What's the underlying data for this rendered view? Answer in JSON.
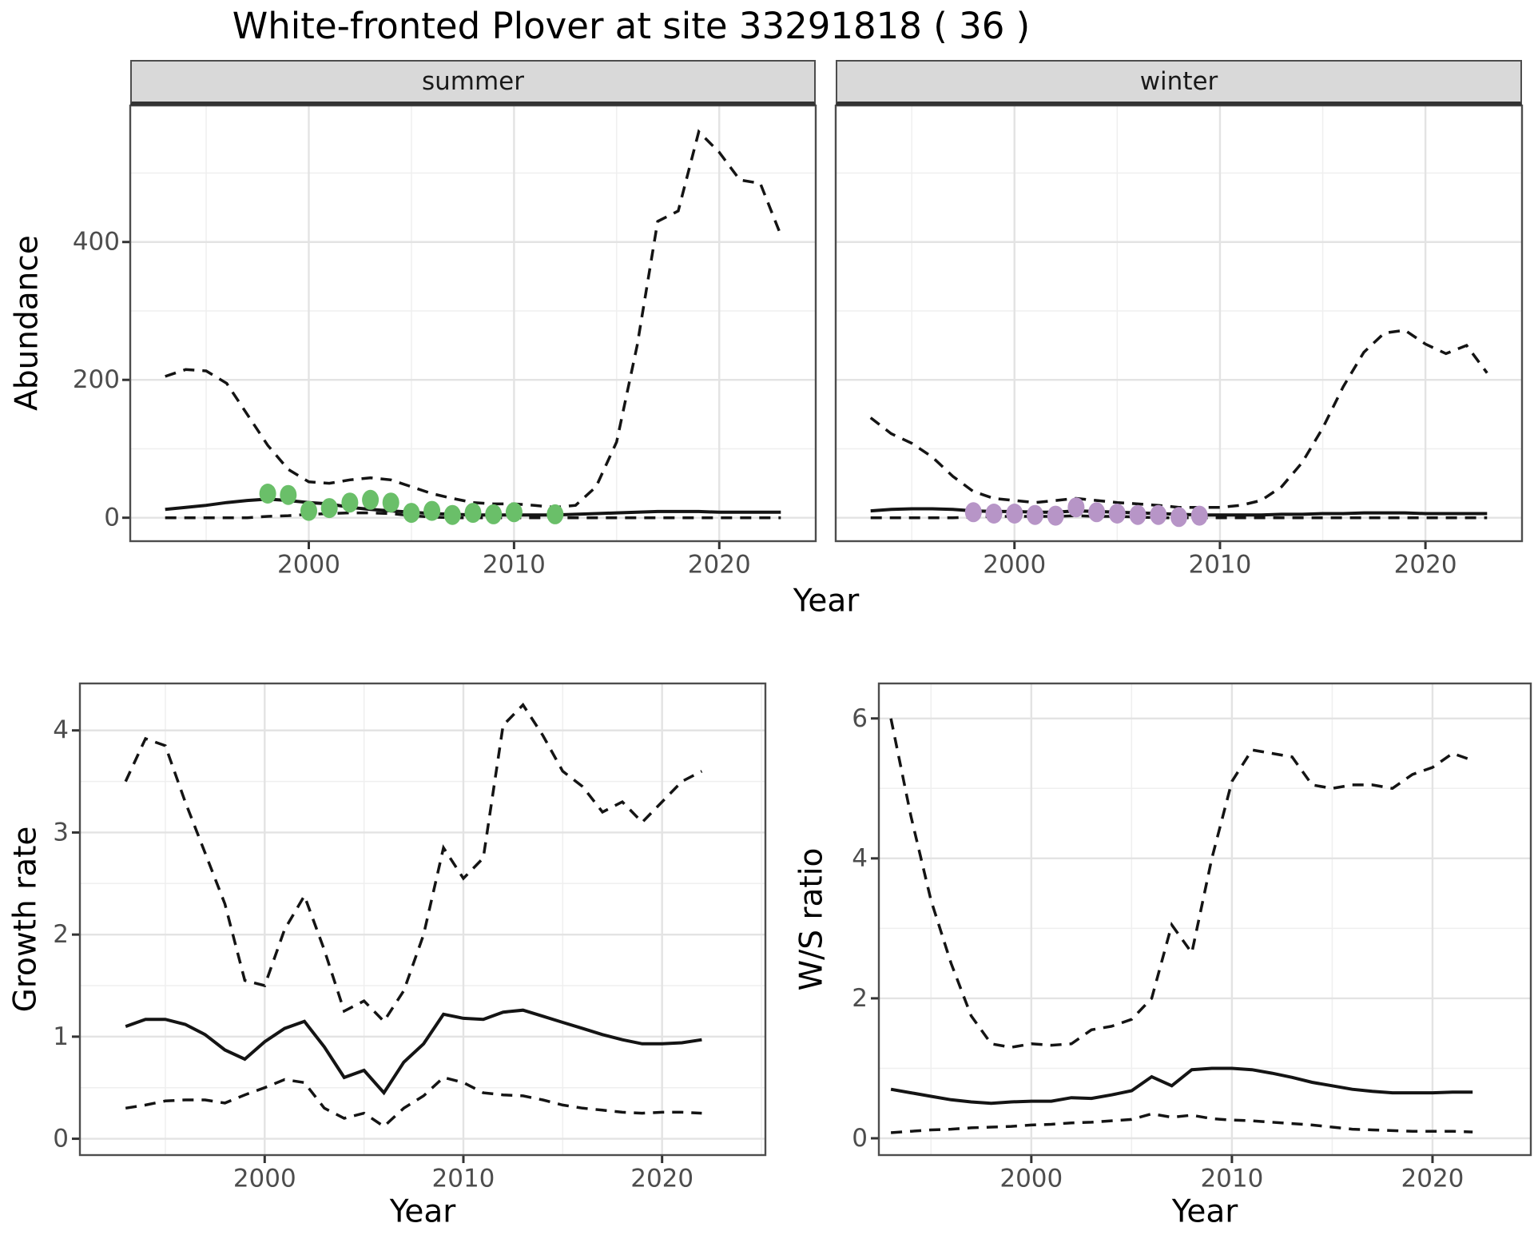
{
  "title": "White-fronted Plover at site 33291818 ( 36 )",
  "facets": {
    "summer": "summer",
    "winter": "winter"
  },
  "axis_titles": {
    "abundance": "Abundance",
    "year_top": "Year",
    "growth": "Growth rate",
    "ws": "W/S ratio",
    "year_growth": "Year",
    "year_ws": "Year"
  },
  "colors": {
    "line": "#141414",
    "grid_major": "#e3e3e3",
    "grid_minor": "#efefef",
    "strip_bg": "#d9d9d9",
    "panel_border": "#4d4d4d",
    "axis_text": "#4d4d4d",
    "tick": "#333333",
    "summer_obs": "#6abf69",
    "winter_obs": "#b795c7"
  },
  "chart_data": [
    {
      "id": "abundance-summer",
      "type": "line",
      "facet": "summer",
      "xlabel": "Year",
      "ylabel": "Abundance",
      "x": [
        1993,
        1994,
        1995,
        1996,
        1997,
        1998,
        1999,
        2000,
        2001,
        2002,
        2003,
        2004,
        2005,
        2006,
        2007,
        2008,
        2009,
        2010,
        2011,
        2012,
        2013,
        2014,
        2015,
        2016,
        2017,
        2018,
        2019,
        2020,
        2021,
        2022,
        2023
      ],
      "series": [
        {
          "name": "upper-ci",
          "style": "dashed",
          "values": [
            205,
            215,
            213,
            195,
            150,
            105,
            70,
            52,
            50,
            55,
            58,
            55,
            45,
            35,
            28,
            22,
            20,
            20,
            18,
            15,
            18,
            45,
            110,
            250,
            430,
            445,
            560,
            530,
            490,
            485,
            410
          ]
        },
        {
          "name": "median",
          "style": "solid",
          "values": [
            12,
            15,
            18,
            22,
            25,
            27,
            25,
            22,
            20,
            15,
            12,
            10,
            8,
            6,
            5,
            4,
            4,
            4,
            4,
            4,
            5,
            6,
            7,
            8,
            9,
            9,
            9,
            8,
            8,
            8,
            8
          ]
        },
        {
          "name": "lower-ci",
          "style": "dashed",
          "values": [
            0,
            0,
            0,
            0,
            0,
            2,
            3,
            5,
            6,
            7,
            7,
            6,
            3,
            1,
            0,
            0,
            0,
            0,
            0,
            0,
            0,
            0,
            0,
            0,
            0,
            0,
            0,
            0,
            0,
            0,
            0
          ]
        }
      ],
      "points": {
        "name": "observed-counts",
        "color_key": "summer_obs",
        "x": [
          1998,
          1999,
          2000,
          2001,
          2002,
          2003,
          2004,
          2005,
          2006,
          2007,
          2008,
          2009,
          2010,
          2012
        ],
        "values": [
          35,
          33,
          10,
          14,
          22,
          26,
          22,
          7,
          10,
          4,
          7,
          5,
          8,
          5
        ]
      },
      "xticks": [
        2000,
        2010,
        2020
      ],
      "yticks": [
        0,
        200,
        400
      ],
      "xlim": [
        1991.3,
        2024.7
      ],
      "ylim": [
        -34,
        598
      ]
    },
    {
      "id": "abundance-winter",
      "type": "line",
      "facet": "winter",
      "xlabel": "Year",
      "ylabel": "Abundance",
      "x": [
        1993,
        1994,
        1995,
        1996,
        1997,
        1998,
        1999,
        2000,
        2001,
        2002,
        2003,
        2004,
        2005,
        2006,
        2007,
        2008,
        2009,
        2010,
        2011,
        2012,
        2013,
        2014,
        2015,
        2016,
        2017,
        2018,
        2019,
        2020,
        2021,
        2022,
        2023
      ],
      "series": [
        {
          "name": "upper-ci",
          "style": "dashed",
          "values": [
            145,
            122,
            108,
            88,
            60,
            38,
            28,
            25,
            22,
            25,
            28,
            25,
            22,
            20,
            18,
            15,
            15,
            15,
            18,
            25,
            45,
            80,
            130,
            190,
            240,
            268,
            272,
            252,
            238,
            250,
            210
          ]
        },
        {
          "name": "median",
          "style": "solid",
          "values": [
            10,
            12,
            13,
            13,
            12,
            10,
            9,
            9,
            8,
            8,
            10,
            9,
            8,
            7,
            6,
            5,
            4,
            4,
            4,
            4,
            5,
            5,
            6,
            6,
            7,
            7,
            7,
            6,
            6,
            6,
            6
          ]
        },
        {
          "name": "lower-ci",
          "style": "dashed",
          "values": [
            0,
            0,
            0,
            0,
            0,
            1,
            2,
            2,
            2,
            2,
            3,
            2,
            2,
            1,
            0,
            0,
            0,
            0,
            0,
            0,
            0,
            0,
            0,
            0,
            0,
            0,
            0,
            0,
            0,
            0,
            0
          ]
        }
      ],
      "points": {
        "name": "observed-counts",
        "color_key": "winter_obs",
        "x": [
          1998,
          1999,
          2000,
          2001,
          2002,
          2003,
          2004,
          2005,
          2006,
          2007,
          2008,
          2009
        ],
        "values": [
          8,
          6,
          6,
          4,
          3,
          15,
          8,
          6,
          4,
          4,
          1,
          3
        ]
      },
      "xticks": [
        2000,
        2010,
        2020
      ],
      "yticks": [
        0,
        200,
        400
      ],
      "xlim": [
        1991.3,
        2024.7
      ],
      "ylim": [
        -34,
        598
      ]
    },
    {
      "id": "growth-rate",
      "type": "line",
      "xlabel": "Year",
      "ylabel": "Growth rate",
      "x": [
        1993,
        1994,
        1995,
        1996,
        1997,
        1998,
        1999,
        2000,
        2001,
        2002,
        2003,
        2004,
        2005,
        2006,
        2007,
        2008,
        2009,
        2010,
        2011,
        2012,
        2013,
        2014,
        2015,
        2016,
        2017,
        2018,
        2019,
        2020,
        2021,
        2022
      ],
      "series": [
        {
          "name": "upper-ci",
          "style": "dashed",
          "values": [
            3.5,
            3.92,
            3.85,
            3.3,
            2.8,
            2.3,
            1.55,
            1.5,
            2.05,
            2.38,
            1.85,
            1.25,
            1.35,
            1.15,
            1.45,
            2.0,
            2.85,
            2.55,
            2.75,
            4.05,
            4.25,
            3.95,
            3.6,
            3.45,
            3.2,
            3.3,
            3.1,
            3.3,
            3.5,
            3.6
          ]
        },
        {
          "name": "median",
          "style": "solid",
          "values": [
            1.1,
            1.17,
            1.17,
            1.12,
            1.02,
            0.87,
            0.78,
            0.95,
            1.08,
            1.15,
            0.9,
            0.6,
            0.67,
            0.45,
            0.75,
            0.93,
            1.22,
            1.18,
            1.17,
            1.24,
            1.26,
            1.2,
            1.14,
            1.08,
            1.02,
            0.97,
            0.93,
            0.93,
            0.94,
            0.97
          ]
        },
        {
          "name": "lower-ci",
          "style": "dashed",
          "values": [
            0.3,
            0.33,
            0.37,
            0.38,
            0.38,
            0.35,
            0.43,
            0.5,
            0.58,
            0.55,
            0.3,
            0.2,
            0.25,
            0.12,
            0.3,
            0.42,
            0.6,
            0.55,
            0.45,
            0.43,
            0.42,
            0.38,
            0.33,
            0.3,
            0.28,
            0.26,
            0.25,
            0.26,
            0.26,
            0.25
          ]
        }
      ],
      "xticks": [
        2000,
        2010,
        2020
      ],
      "yticks": [
        0,
        1,
        2,
        3,
        4
      ],
      "xlim": [
        1990.7,
        2025.2
      ],
      "ylim": [
        -0.16,
        4.46
      ]
    },
    {
      "id": "ws-ratio",
      "type": "line",
      "xlabel": "Year",
      "ylabel": "W/S ratio",
      "x": [
        1993,
        1994,
        1995,
        1996,
        1997,
        1998,
        1999,
        2000,
        2001,
        2002,
        2003,
        2004,
        2005,
        2006,
        2007,
        2008,
        2009,
        2010,
        2011,
        2012,
        2013,
        2014,
        2015,
        2016,
        2017,
        2018,
        2019,
        2020,
        2021,
        2022
      ],
      "series": [
        {
          "name": "upper-ci",
          "style": "dashed",
          "values": [
            6.0,
            4.6,
            3.4,
            2.5,
            1.75,
            1.35,
            1.3,
            1.35,
            1.33,
            1.35,
            1.55,
            1.6,
            1.7,
            2.0,
            3.05,
            2.65,
            4.0,
            5.1,
            5.55,
            5.5,
            5.45,
            5.05,
            5.0,
            5.05,
            5.05,
            5.0,
            5.2,
            5.3,
            5.5,
            5.4
          ]
        },
        {
          "name": "median",
          "style": "solid",
          "values": [
            0.7,
            0.65,
            0.6,
            0.55,
            0.52,
            0.5,
            0.52,
            0.53,
            0.53,
            0.58,
            0.57,
            0.62,
            0.68,
            0.88,
            0.75,
            0.98,
            1.0,
            1.0,
            0.98,
            0.93,
            0.87,
            0.8,
            0.75,
            0.7,
            0.67,
            0.65,
            0.65,
            0.65,
            0.66,
            0.66
          ]
        },
        {
          "name": "lower-ci",
          "style": "dashed",
          "values": [
            0.08,
            0.1,
            0.12,
            0.13,
            0.15,
            0.16,
            0.17,
            0.19,
            0.2,
            0.22,
            0.23,
            0.25,
            0.27,
            0.35,
            0.3,
            0.33,
            0.28,
            0.26,
            0.25,
            0.23,
            0.21,
            0.19,
            0.16,
            0.13,
            0.12,
            0.11,
            0.1,
            0.1,
            0.1,
            0.09
          ]
        }
      ],
      "xticks": [
        2000,
        2010,
        2020
      ],
      "yticks": [
        0,
        2,
        4,
        6
      ],
      "xlim": [
        1992.4,
        2024.9
      ],
      "ylim": [
        -0.24,
        6.5
      ]
    }
  ]
}
